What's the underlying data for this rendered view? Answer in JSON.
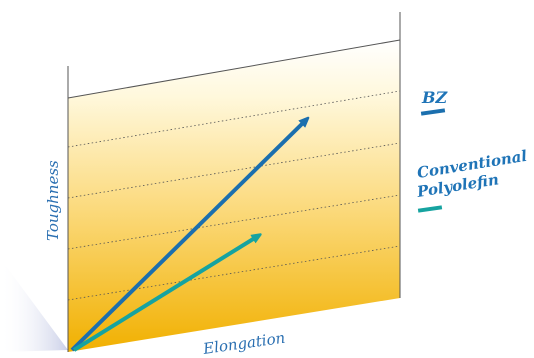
{
  "axes": {
    "y_label": "Toughness",
    "x_label": "Elongation"
  },
  "legend": [
    {
      "name": "BZ",
      "color": "#1b6fae"
    },
    {
      "name": "Conventional Polyolefin",
      "line1": "Conventional",
      "line2": "Polyolefin",
      "color": "#16a3a0"
    }
  ],
  "colors": {
    "accent_label": "#1f74b7",
    "axis_text": "#2a6fb1",
    "panel_gradient_top": "#ffffff",
    "panel_gradient_bottom": "#f3b400"
  }
}
